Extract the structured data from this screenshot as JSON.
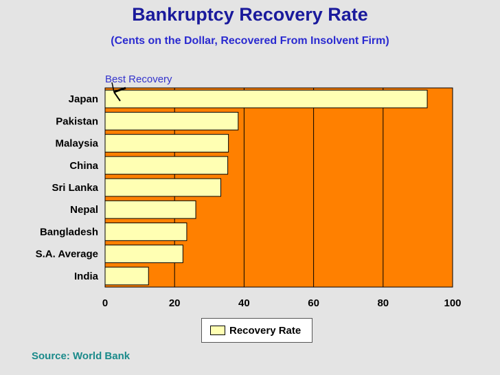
{
  "title": "Bankruptcy Recovery Rate",
  "subtitle": "(Cents on the Dollar, Recovered From Insolvent Firm)",
  "annotation": "Best Recovery",
  "source": "Source: World Bank",
  "colors": {
    "plot_background": "#ff8000",
    "bar_fill": "#ffffb3",
    "title": "#1a1a9c",
    "subtitle": "#2a2ad0",
    "annotation": "#3333cc",
    "source": "#1a8a8a"
  },
  "chart_data": {
    "type": "bar",
    "orientation": "horizontal",
    "categories": [
      "Japan",
      "Pakistan",
      "Malaysia",
      "China",
      "Sri Lanka",
      "Nepal",
      "Bangladesh",
      "S.A. Average",
      "India"
    ],
    "series": [
      {
        "name": "Recovery Rate",
        "values": [
          92.7,
          38.3,
          35.5,
          35.3,
          33.3,
          26.1,
          23.5,
          22.4,
          12.5
        ]
      }
    ],
    "xlim": [
      0,
      100
    ],
    "xticks": [
      "0",
      "20",
      "40",
      "60",
      "80",
      "100"
    ],
    "grid": "vertical",
    "legend": "bottom"
  }
}
